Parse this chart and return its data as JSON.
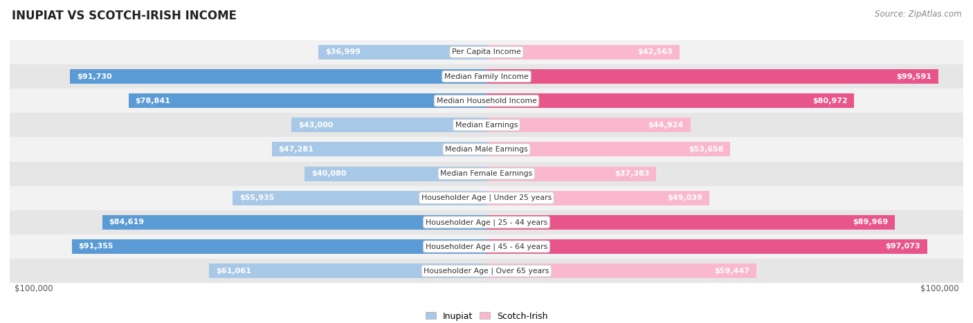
{
  "title": "INUPIAT VS SCOTCH-IRISH INCOME",
  "source": "Source: ZipAtlas.com",
  "max_value": 100000,
  "categories": [
    "Per Capita Income",
    "Median Family Income",
    "Median Household Income",
    "Median Earnings",
    "Median Male Earnings",
    "Median Female Earnings",
    "Householder Age | Under 25 years",
    "Householder Age | 25 - 44 years",
    "Householder Age | 45 - 64 years",
    "Householder Age | Over 65 years"
  ],
  "inupiat_values": [
    36999,
    91730,
    78841,
    43000,
    47281,
    40080,
    55935,
    84619,
    91355,
    61061
  ],
  "scotch_irish_values": [
    42563,
    99591,
    80972,
    44924,
    53658,
    37383,
    49039,
    89969,
    97073,
    59447
  ],
  "inupiat_labels": [
    "$36,999",
    "$91,730",
    "$78,841",
    "$43,000",
    "$47,281",
    "$40,080",
    "$55,935",
    "$84,619",
    "$91,355",
    "$61,061"
  ],
  "scotch_irish_labels": [
    "$42,563",
    "$99,591",
    "$80,972",
    "$44,924",
    "$53,658",
    "$37,383",
    "$49,039",
    "$89,969",
    "$97,073",
    "$59,447"
  ],
  "inupiat_color_light": "#a8c8e8",
  "inupiat_color_dark": "#5b9bd5",
  "scotch_irish_color_light": "#f9b8ce",
  "scotch_irish_color_dark": "#e8558a",
  "bg_color": "#ffffff",
  "row_bg_light": "#f2f2f2",
  "row_bg_dark": "#e6e6e6",
  "xlabel_left": "$100,000",
  "xlabel_right": "$100,000",
  "legend_inupiat": "Inupiat",
  "legend_scotch_irish": "Scotch-Irish",
  "bar_height": 0.6,
  "inside_label_threshold": 0.25
}
